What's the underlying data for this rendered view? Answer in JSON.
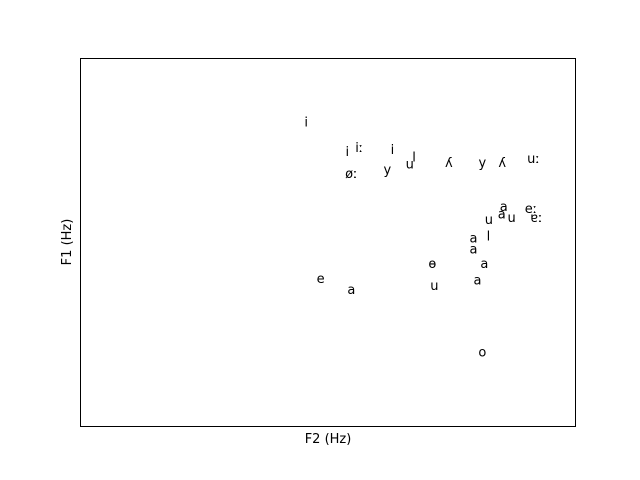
{
  "chart_data": {
    "type": "scatter",
    "xlabel": "F2 (Hz)",
    "ylabel": "F1 (Hz)",
    "xlim": [
      0,
      100
    ],
    "ylim": [
      100,
      0
    ],
    "ticks_visible": false,
    "grid": false,
    "legend": "none",
    "points": [
      {
        "label": "i",
        "x": 45.6,
        "y": 17.5
      },
      {
        "label": "i",
        "x": 53.9,
        "y": 25.5
      },
      {
        "label": "iː",
        "x": 56.3,
        "y": 24.5
      },
      {
        "label": "i",
        "x": 63.0,
        "y": 25.0
      },
      {
        "label": "l",
        "x": 67.4,
        "y": 27.0
      },
      {
        "label": "u",
        "x": 66.5,
        "y": 29.0
      },
      {
        "label": "ʎ",
        "x": 74.4,
        "y": 28.5
      },
      {
        "label": "y",
        "x": 81.2,
        "y": 28.5
      },
      {
        "label": "ʎ",
        "x": 85.2,
        "y": 28.5
      },
      {
        "label": "uː",
        "x": 91.5,
        "y": 27.5
      },
      {
        "label": "øː",
        "x": 54.7,
        "y": 31.5
      },
      {
        "label": "y",
        "x": 62.0,
        "y": 30.5
      },
      {
        "label": "a",
        "x": 85.5,
        "y": 40.5
      },
      {
        "label": "eː",
        "x": 91.0,
        "y": 41.0
      },
      {
        "label": "a",
        "x": 85.1,
        "y": 42.5
      },
      {
        "label": "u",
        "x": 82.5,
        "y": 44.0
      },
      {
        "label": "u",
        "x": 87.1,
        "y": 43.5
      },
      {
        "label": "ɐː",
        "x": 92.1,
        "y": 43.5
      },
      {
        "label": "a",
        "x": 79.4,
        "y": 49.0
      },
      {
        "label": "l",
        "x": 82.4,
        "y": 48.5
      },
      {
        "label": "a",
        "x": 79.4,
        "y": 52.0
      },
      {
        "label": "ɵ",
        "x": 71.1,
        "y": 56.0
      },
      {
        "label": "a",
        "x": 81.6,
        "y": 56.0
      },
      {
        "label": "e",
        "x": 48.5,
        "y": 60.0
      },
      {
        "label": "a",
        "x": 54.7,
        "y": 63.0
      },
      {
        "label": "u",
        "x": 71.5,
        "y": 62.0
      },
      {
        "label": "a",
        "x": 80.2,
        "y": 60.5
      },
      {
        "label": "o",
        "x": 81.2,
        "y": 80.0
      }
    ]
  }
}
